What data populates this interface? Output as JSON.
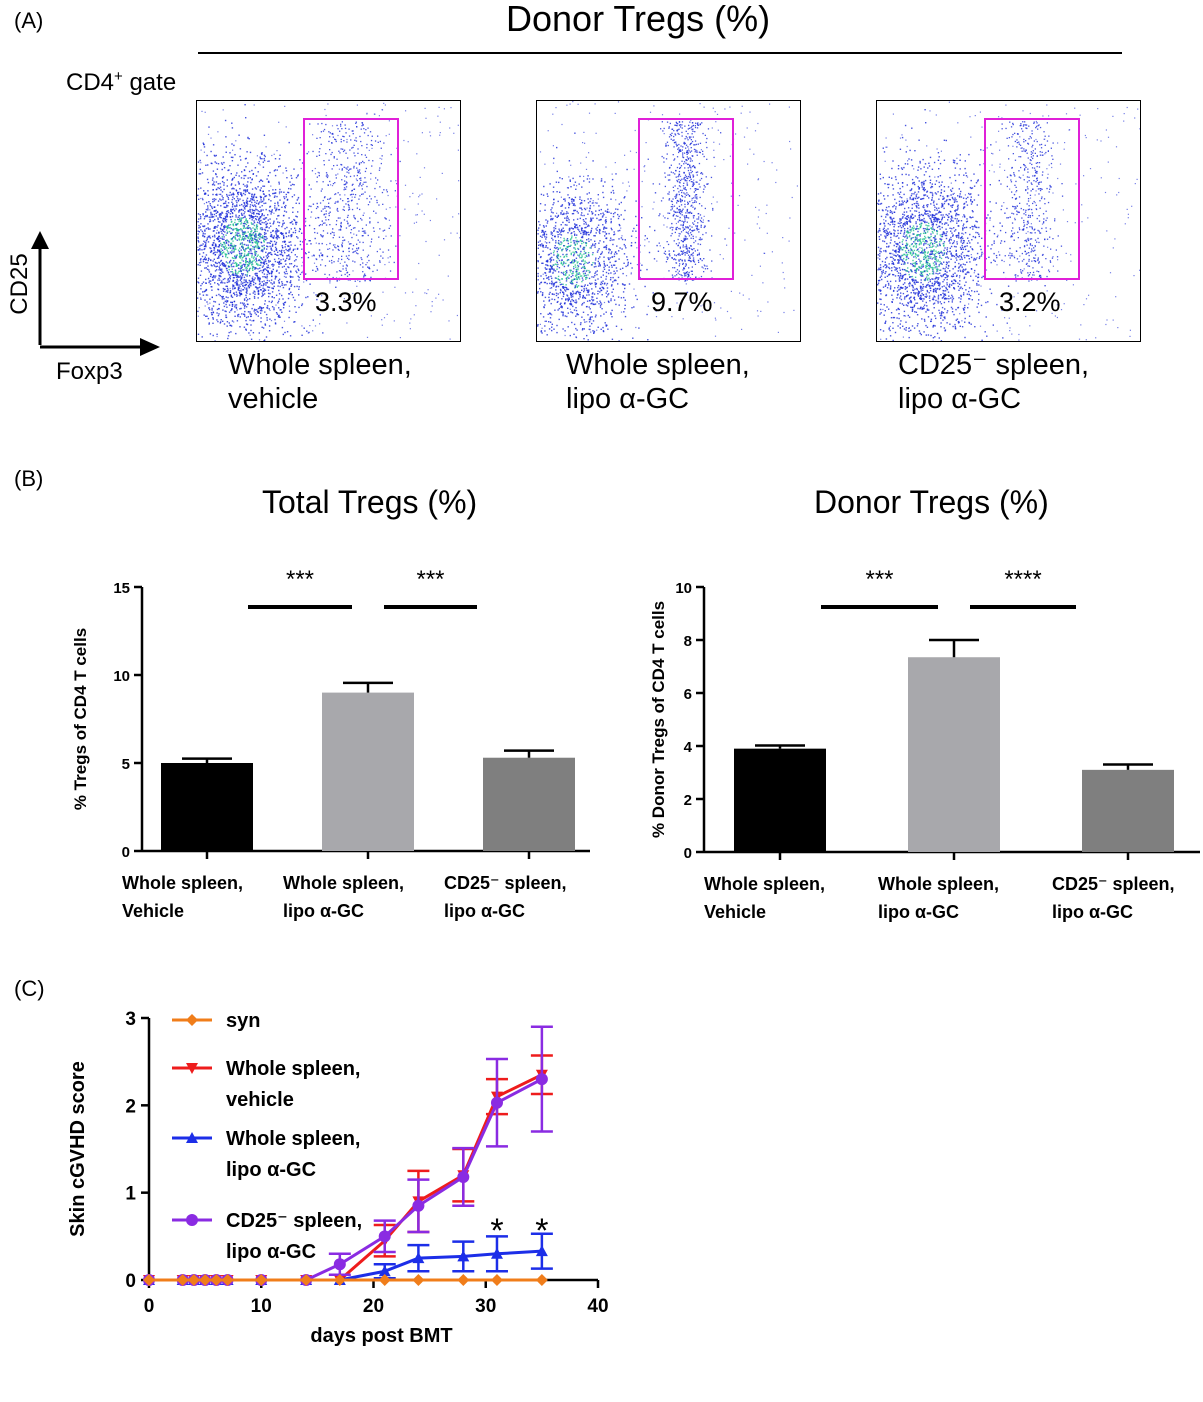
{
  "panelA": {
    "letter": "(A)",
    "title": "Donor Tregs (%)",
    "gate_label_prefix": "CD4",
    "gate_label_sup": "+",
    "gate_label_suffix": " gate",
    "y_axis": "CD25",
    "x_axis": "Foxp3",
    "plots": [
      {
        "percent": "3.3%",
        "label_line1": "Whole spleen,",
        "label_line2": "vehicle"
      },
      {
        "percent": "9.7%",
        "label_line1": "Whole spleen,",
        "label_line2": "lipo  α-GC"
      },
      {
        "percent": "3.2%",
        "label_line1": "CD25⁻ spleen,",
        "label_line2": "lipo  α-GC"
      }
    ],
    "colors": {
      "gate": "#e020d8",
      "dots": "#1a2ad8",
      "dense": "#20c090"
    }
  },
  "panelB": {
    "letter": "(B)"
  },
  "panelC": {
    "letter": "(C)"
  },
  "chart_data": [
    {
      "type": "bar",
      "title": "Total Tregs (%)",
      "ylabel": "% Tregs of CD4 T cells",
      "ylim": [
        0,
        15
      ],
      "yticks": [
        "0",
        "5",
        "10",
        "15"
      ],
      "categories": [
        [
          "Whole spleen,",
          "Vehicle"
        ],
        [
          "Whole spleen,",
          "lipo  α-GC"
        ],
        [
          "CD25⁻ spleen,",
          "lipo  α-GC"
        ]
      ],
      "values": [
        5.0,
        9.0,
        5.3
      ],
      "errors": [
        0.25,
        0.55,
        0.4
      ],
      "colors": [
        "#000000",
        "#a8a8ac",
        "#7f7f7f"
      ],
      "significance": [
        {
          "from": 0,
          "to": 1,
          "label": "***"
        },
        {
          "from": 1,
          "to": 2,
          "label": "***"
        }
      ]
    },
    {
      "type": "bar",
      "title": "Donor Tregs (%)",
      "ylabel": "% Donor Tregs of CD4 T cells",
      "ylim": [
        0,
        10
      ],
      "yticks": [
        "0",
        "2",
        "4",
        "6",
        "8",
        "10"
      ],
      "categories": [
        [
          "Whole spleen,",
          "Vehicle"
        ],
        [
          "Whole spleen,",
          "lipo  α-GC"
        ],
        [
          "CD25⁻ spleen,",
          "lipo  α-GC"
        ]
      ],
      "values": [
        3.9,
        7.35,
        3.1
      ],
      "errors": [
        0.12,
        0.65,
        0.2
      ],
      "colors": [
        "#000000",
        "#a8a8ac",
        "#7f7f7f"
      ],
      "significance": [
        {
          "from": 0,
          "to": 1,
          "label": "***"
        },
        {
          "from": 1,
          "to": 2,
          "label": "****"
        }
      ]
    },
    {
      "type": "line",
      "title": "",
      "xlabel": "days post BMT",
      "ylabel": "Skin cGVHD score",
      "xlim": [
        0,
        40
      ],
      "ylim": [
        0,
        3
      ],
      "xticks": [
        "0",
        "10",
        "20",
        "30",
        "40"
      ],
      "yticks": [
        "0",
        "1",
        "2",
        "3"
      ],
      "series": [
        {
          "name": "syn",
          "color": "#f07d1a",
          "marker": "diamond",
          "x": [
            0,
            3,
            4,
            5,
            6,
            7,
            10,
            14,
            17,
            21,
            24,
            28,
            31,
            35
          ],
          "y": [
            0,
            0,
            0,
            0,
            0,
            0,
            0,
            0,
            0,
            0,
            0,
            0,
            0,
            0
          ],
          "err": [
            0,
            0,
            0,
            0,
            0,
            0,
            0,
            0,
            0,
            0,
            0,
            0,
            0,
            0
          ]
        },
        {
          "name": "Whole spleen, vehicle",
          "color": "#ee1c1c",
          "marker": "triangle-down",
          "x": [
            0,
            3,
            4,
            5,
            6,
            7,
            10,
            14,
            17,
            21,
            24,
            28,
            31,
            35
          ],
          "y": [
            0,
            0,
            0,
            0,
            0,
            0,
            0,
            0,
            0,
            0.45,
            0.9,
            1.2,
            2.1,
            2.35
          ],
          "err": [
            0,
            0,
            0,
            0,
            0,
            0,
            0,
            0,
            0,
            0.18,
            0.35,
            0.3,
            0.2,
            0.22
          ]
        },
        {
          "name": "Whole spleen, lipo α-GC",
          "color": "#1c2ee8",
          "marker": "triangle-up",
          "x": [
            0,
            3,
            4,
            5,
            6,
            7,
            10,
            14,
            17,
            21,
            24,
            28,
            31,
            35
          ],
          "y": [
            0,
            0,
            0,
            0,
            0,
            0,
            0,
            0,
            0,
            0.1,
            0.25,
            0.27,
            0.3,
            0.33
          ],
          "err": [
            0,
            0,
            0,
            0,
            0,
            0,
            0,
            0,
            0,
            0.08,
            0.15,
            0.17,
            0.2,
            0.2
          ]
        },
        {
          "name": "CD25⁻ spleen, lipo α-GC",
          "color": "#8a2be2",
          "marker": "circle",
          "x": [
            0,
            3,
            4,
            5,
            6,
            7,
            10,
            14,
            17,
            21,
            24,
            28,
            31,
            35
          ],
          "y": [
            0,
            0,
            0,
            0,
            0,
            0,
            0,
            0,
            0.18,
            0.5,
            0.85,
            1.18,
            2.03,
            2.3
          ],
          "err": [
            0,
            0,
            0,
            0,
            0,
            0,
            0,
            0,
            0.12,
            0.18,
            0.3,
            0.33,
            0.5,
            0.6
          ]
        }
      ],
      "legend": [
        {
          "series": 0,
          "line1": "syn",
          "line2": ""
        },
        {
          "series": 1,
          "line1": "Whole spleen,",
          "line2": "vehicle"
        },
        {
          "series": 2,
          "line1": "Whole spleen,",
          "line2": "lipo α-GC"
        },
        {
          "series": 3,
          "line1": "CD25⁻ spleen,",
          "line2": "lipo α-GC"
        }
      ],
      "legend_position": "top-left",
      "annotations": [
        {
          "x": 31,
          "label": "*"
        },
        {
          "x": 35,
          "label": "*"
        }
      ]
    }
  ]
}
